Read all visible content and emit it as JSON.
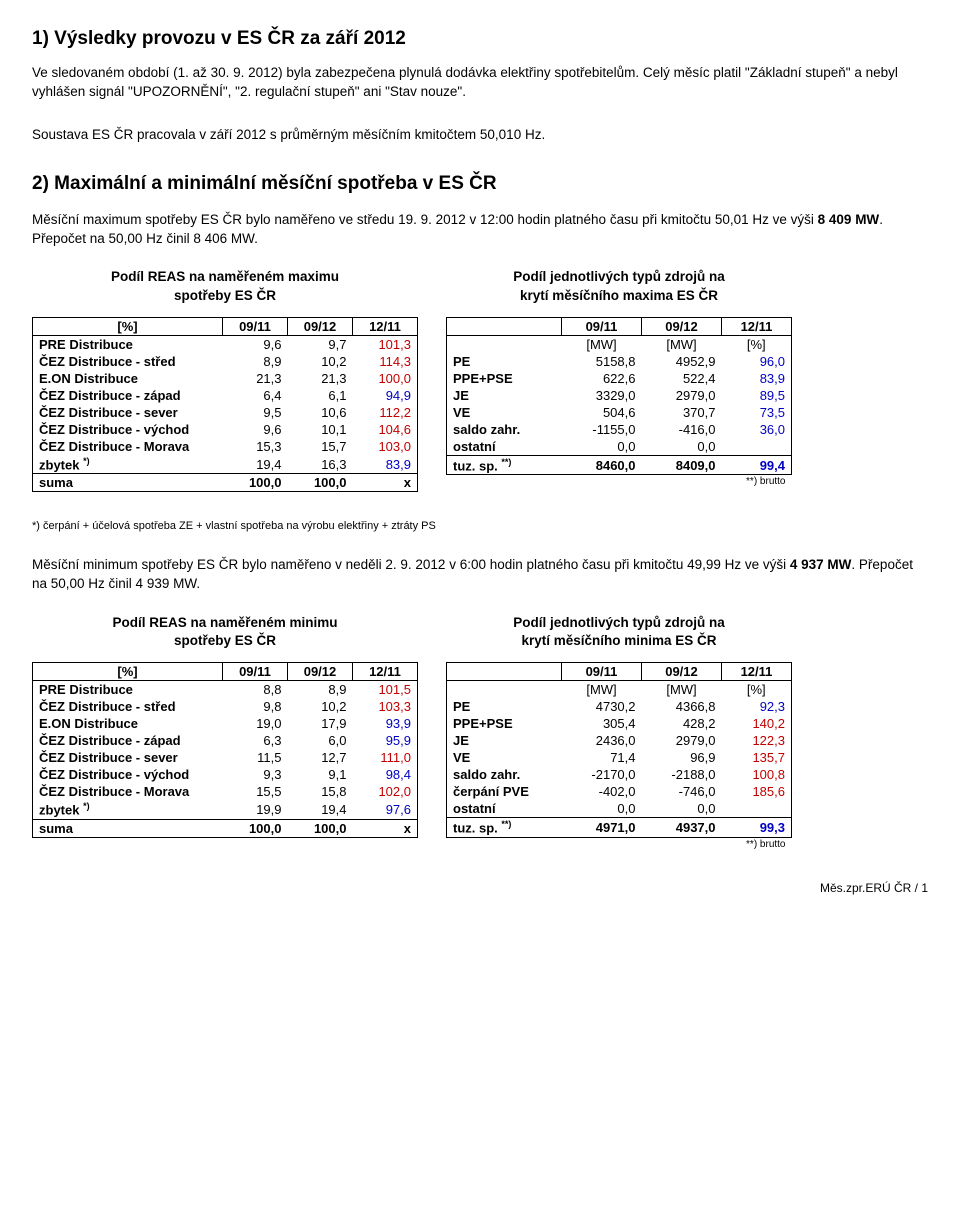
{
  "section1": {
    "heading": "1) Výsledky provozu v ES ČR za září 2012",
    "para1": "Ve sledovaném období (1. až 30. 9. 2012) byla zabezpečena plynulá dodávka elektřiny spotřebitelům. Celý měsíc platil \"Základní stupeň\" a nebyl vyhlášen signál \"UPOZORNĚNÍ\", \"2. regulační stupeň\" ani \"Stav nouze\".",
    "para2": "Soustava ES ČR pracovala v září 2012 s průměrným měsíčním kmitočtem 50,010 Hz."
  },
  "section2": {
    "heading": "2) Maximální a minimální měsíční spotřeba v ES ČR",
    "max_intro_pre": "Měsíční maximum spotřeby ES ČR bylo naměřeno ve středu 19. 9. 2012 v 12:00 hodin platného času při kmitočtu 50,01 Hz ve výši ",
    "max_intro_val": "8 409 MW",
    "max_intro_post": ". Přepočet na 50,00 Hz činil 8 406 MW.",
    "min_intro_pre": "Měsíční minimum spotřeby ES ČR bylo naměřeno v neděli 2. 9. 2012 v 6:00 hodin platného času při kmitočtu 49,99 Hz ve výši ",
    "min_intro_val": "4 937 MW",
    "min_intro_post": ". Přepočet na 50,00 Hz činil 4 939 MW."
  },
  "table_titles": {
    "reas_max": "Podíl REAS na naměřeném maximu\nspotřeby ES ČR",
    "src_max": "Podíl jednotlivých typů zdrojů na\nkrytí měsíčního maxima ES ČR",
    "reas_min": "Podíl REAS na naměřeném minimu\nspotřeby ES ČR",
    "src_min": "Podíl jednotlivých typů zdrojů na\nkrytí měsíčního minima ES ČR"
  },
  "headers": {
    "pct": "[%]",
    "c0911": "09/11",
    "c0912": "09/12",
    "c1211": "12/11",
    "mw": "[MW]",
    "suma": "suma",
    "x": "x",
    "brutto": "**) brutto"
  },
  "reas_labels": {
    "r0": "PRE Distribuce",
    "r1": "ČEZ Distribuce - střed",
    "r2": "E.ON Distribuce",
    "r3": "ČEZ Distribuce - západ",
    "r4": "ČEZ Distribuce - sever",
    "r5": "ČEZ Distribuce - východ",
    "r6": "ČEZ Distribuce - Morava",
    "r7_pre": "zbytek ",
    "r7_sup": "*)"
  },
  "src_labels": {
    "s0": "PE",
    "s1": "PPE+PSE",
    "s2": "JE",
    "s3": "VE",
    "s4": "saldo zahr.",
    "s5a": "ostatní",
    "s5b": "čerpání PVE",
    "s6": "ostatní",
    "s_tuz_pre": "tuz. sp. ",
    "s_tuz_sup": "**)"
  },
  "reas_max": {
    "rows": [
      {
        "a": "9,6",
        "b": "9,7",
        "c": "101,3",
        "cls": "ratio-red"
      },
      {
        "a": "8,9",
        "b": "10,2",
        "c": "114,3",
        "cls": "ratio-red"
      },
      {
        "a": "21,3",
        "b": "21,3",
        "c": "100,0",
        "cls": "ratio-red"
      },
      {
        "a": "6,4",
        "b": "6,1",
        "c": "94,9",
        "cls": "ratio-blue"
      },
      {
        "a": "9,5",
        "b": "10,6",
        "c": "112,2",
        "cls": "ratio-red"
      },
      {
        "a": "9,6",
        "b": "10,1",
        "c": "104,6",
        "cls": "ratio-red"
      },
      {
        "a": "15,3",
        "b": "15,7",
        "c": "103,0",
        "cls": "ratio-red"
      },
      {
        "a": "19,4",
        "b": "16,3",
        "c": "83,9",
        "cls": "ratio-blue"
      }
    ],
    "sum": {
      "a": "100,0",
      "b": "100,0"
    }
  },
  "src_max": {
    "rows": [
      {
        "l": "PE",
        "a": "5158,8",
        "b": "4952,9",
        "c": "96,0",
        "cls": "ratio-blue"
      },
      {
        "l": "PPE+PSE",
        "a": "622,6",
        "b": "522,4",
        "c": "83,9",
        "cls": "ratio-blue"
      },
      {
        "l": "JE",
        "a": "3329,0",
        "b": "2979,0",
        "c": "89,5",
        "cls": "ratio-blue"
      },
      {
        "l": "VE",
        "a": "504,6",
        "b": "370,7",
        "c": "73,5",
        "cls": "ratio-blue"
      },
      {
        "l": "saldo zahr.",
        "a": "-1155,0",
        "b": "-416,0",
        "c": "36,0",
        "cls": "ratio-blue"
      },
      {
        "l": "ostatní",
        "a": "0,0",
        "b": "0,0",
        "c": "",
        "cls": ""
      }
    ],
    "tuz": {
      "a": "8460,0",
      "b": "8409,0",
      "c": "99,4",
      "cls": "ratio-blue"
    }
  },
  "reas_min": {
    "rows": [
      {
        "a": "8,8",
        "b": "8,9",
        "c": "101,5",
        "cls": "ratio-red"
      },
      {
        "a": "9,8",
        "b": "10,2",
        "c": "103,3",
        "cls": "ratio-red"
      },
      {
        "a": "19,0",
        "b": "17,9",
        "c": "93,9",
        "cls": "ratio-blue"
      },
      {
        "a": "6,3",
        "b": "6,0",
        "c": "95,9",
        "cls": "ratio-blue"
      },
      {
        "a": "11,5",
        "b": "12,7",
        "c": "111,0",
        "cls": "ratio-red"
      },
      {
        "a": "9,3",
        "b": "9,1",
        "c": "98,4",
        "cls": "ratio-blue"
      },
      {
        "a": "15,5",
        "b": "15,8",
        "c": "102,0",
        "cls": "ratio-red"
      },
      {
        "a": "19,9",
        "b": "19,4",
        "c": "97,6",
        "cls": "ratio-blue"
      }
    ],
    "sum": {
      "a": "100,0",
      "b": "100,0"
    }
  },
  "src_min": {
    "rows": [
      {
        "l": "PE",
        "a": "4730,2",
        "b": "4366,8",
        "c": "92,3",
        "cls": "ratio-blue"
      },
      {
        "l": "PPE+PSE",
        "a": "305,4",
        "b": "428,2",
        "c": "140,2",
        "cls": "ratio-red"
      },
      {
        "l": "JE",
        "a": "2436,0",
        "b": "2979,0",
        "c": "122,3",
        "cls": "ratio-red"
      },
      {
        "l": "VE",
        "a": "71,4",
        "b": "96,9",
        "c": "135,7",
        "cls": "ratio-red"
      },
      {
        "l": "saldo zahr.",
        "a": "-2170,0",
        "b": "-2188,0",
        "c": "100,8",
        "cls": "ratio-red"
      },
      {
        "l": "čerpání PVE",
        "a": "-402,0",
        "b": "-746,0",
        "c": "185,6",
        "cls": "ratio-red"
      },
      {
        "l": "ostatní",
        "a": "0,0",
        "b": "0,0",
        "c": "",
        "cls": ""
      }
    ],
    "tuz": {
      "a": "4971,0",
      "b": "4937,0",
      "c": "99,3",
      "cls": "ratio-blue"
    }
  },
  "footnote": "*) čerpání + účelová spotřeba ZE + vlastní spotřeba na výrobu elektřiny + ztráty PS",
  "pagefoot": "Měs.zpr.ERÚ ČR / 1"
}
